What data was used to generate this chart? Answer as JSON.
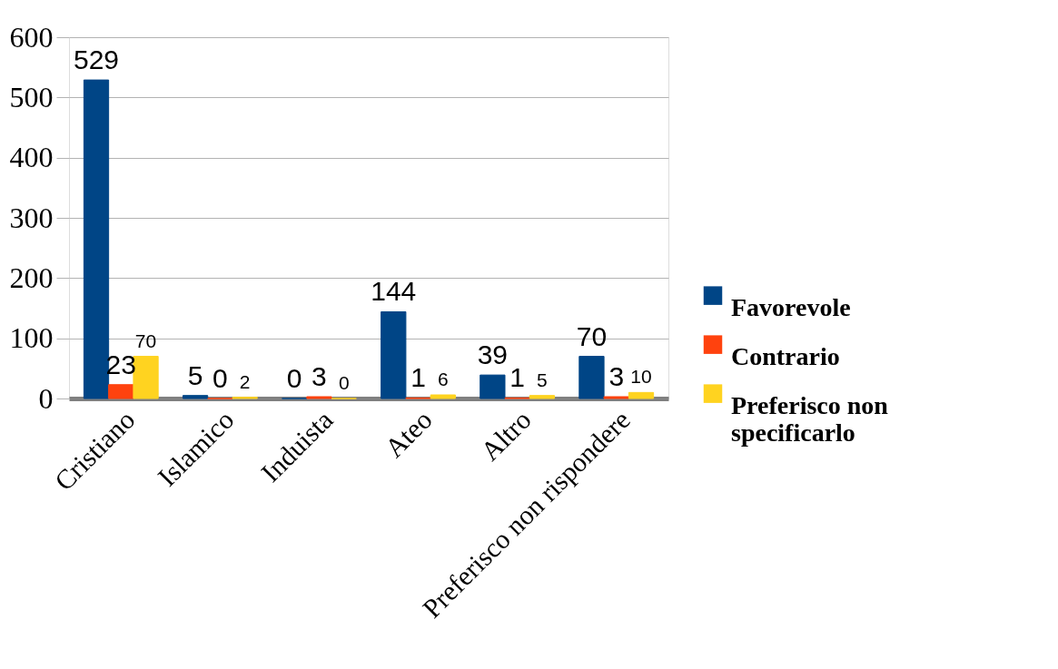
{
  "chart_data": {
    "type": "bar",
    "categories": [
      "Cristiano",
      "Islamico",
      "Induista",
      "Ateo",
      "Altro",
      "Preferisco non rispondere"
    ],
    "series": [
      {
        "name": "Favorevole",
        "color": "#004586",
        "values": [
          529,
          5,
          0,
          144,
          39,
          70
        ]
      },
      {
        "name": "Contrario",
        "color": "#ff420e",
        "values": [
          23,
          0,
          3,
          1,
          1,
          3
        ]
      },
      {
        "name": "Preferisco non specificarlo",
        "color": "#ffd320",
        "values": [
          70,
          2,
          0,
          6,
          5,
          10
        ]
      }
    ],
    "ylim": [
      0,
      600
    ],
    "yticks": [
      0,
      100,
      200,
      300,
      400,
      500,
      600
    ],
    "grid": "y",
    "legend": "right",
    "data_labels": true
  }
}
